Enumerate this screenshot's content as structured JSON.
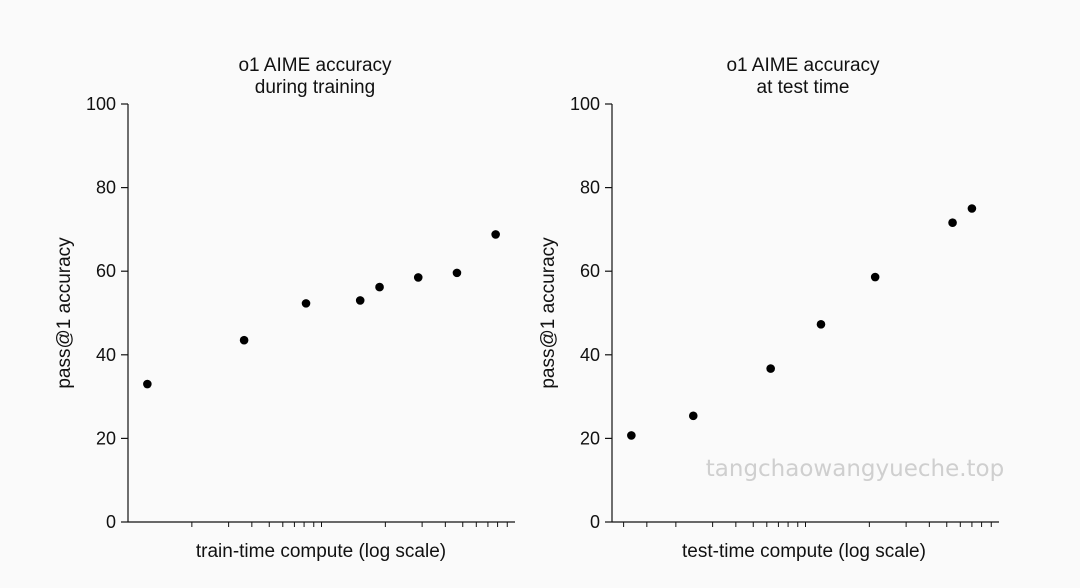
{
  "chart_data": [
    {
      "type": "scatter",
      "title": [
        "o1 AIME accuracy",
        "during training"
      ],
      "xlabel": "train-time compute (log scale)",
      "ylabel": "pass@1 accuracy",
      "xscale": "log",
      "xlim": [
        0,
        1
      ],
      "ylim": [
        0,
        100
      ],
      "yticks": [
        0,
        20,
        40,
        60,
        80,
        100
      ],
      "grid": false,
      "x": [
        0.05,
        0.3,
        0.46,
        0.6,
        0.65,
        0.75,
        0.85,
        0.95
      ],
      "values": [
        33,
        43.5,
        52.3,
        53,
        56.2,
        58.5,
        59.6,
        68.8
      ],
      "color": "#000000"
    },
    {
      "type": "scatter",
      "title": [
        "o1 AIME accuracy",
        "at test time"
      ],
      "xlabel": "test-time compute (log scale)",
      "ylabel": "pass@1 accuracy",
      "xscale": "log",
      "xlim": [
        0,
        1
      ],
      "ylim": [
        0,
        100
      ],
      "yticks": [
        0,
        20,
        40,
        60,
        80,
        100
      ],
      "grid": false,
      "x": [
        0.05,
        0.21,
        0.41,
        0.54,
        0.68,
        0.88,
        0.93
      ],
      "values": [
        20.7,
        25.4,
        36.7,
        47.3,
        58.6,
        71.6,
        75
      ],
      "color": "#000000"
    }
  ],
  "watermark": "tangchaowangyueche.top"
}
